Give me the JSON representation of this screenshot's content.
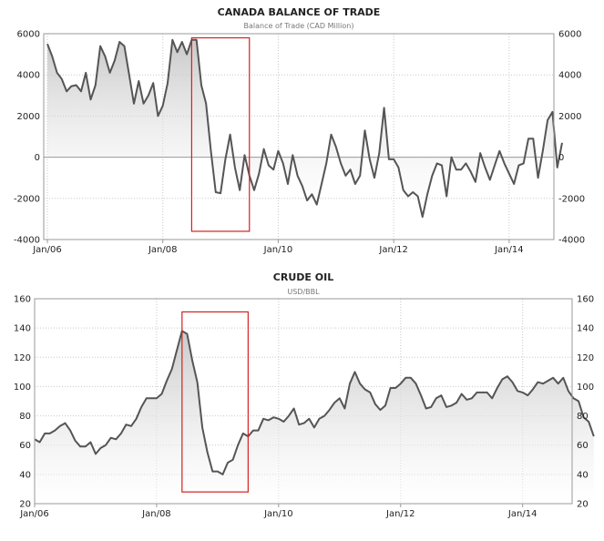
{
  "charts": [
    {
      "title": "CANADA BALANCE OF TRADE",
      "subtitle": "Balance of Trade (CAD Million)"
    },
    {
      "title": "CRUDE OIL",
      "subtitle": "USD/BBL"
    }
  ],
  "chart_data": [
    {
      "type": "area",
      "title": "CANADA BALANCE OF TRADE",
      "subtitle": "Balance of Trade (CAD Million)",
      "xlabel": "",
      "ylabel": "",
      "x_ticks": [
        "Jan/06",
        "Jan/08",
        "Jan/10",
        "Jan/12",
        "Jan/14"
      ],
      "y_ticks": [
        -4000,
        -2000,
        0,
        2000,
        4000,
        6000
      ],
      "ylim": [
        -4000,
        6000
      ],
      "grid": true,
      "x_start": "Jan/06",
      "x_step": "1 month",
      "series": [
        {
          "values": [
            5500,
            4900,
            4100,
            3800,
            3200,
            3450,
            3500,
            3200,
            4100,
            2800,
            3500,
            5400,
            4900,
            4100,
            4700,
            5600,
            5400,
            4000,
            2600,
            3700,
            2600,
            3000,
            3600,
            2000,
            2500,
            3600,
            5700,
            5100,
            5600,
            5000,
            5700,
            5700,
            3500,
            2600,
            300,
            -1700,
            -1750,
            -100,
            1100,
            -500,
            -1600,
            100,
            -900,
            -1600,
            -800,
            400,
            -400,
            -600,
            300,
            -300,
            -1300,
            100,
            -900,
            -1400,
            -2100,
            -1800,
            -2300,
            -1300,
            -300,
            1100,
            500,
            -300,
            -900,
            -600,
            -1300,
            -900,
            1300,
            -100,
            -1000,
            200,
            2400,
            -100,
            -100,
            -500,
            -1600,
            -1900,
            -1700,
            -1900,
            -2900,
            -1800,
            -900,
            -300,
            -400,
            -1900,
            0,
            -600,
            -600,
            -300,
            -700,
            -1200,
            200,
            -500,
            -1100,
            -400,
            300,
            -300,
            -800,
            -1300,
            -400,
            -300,
            900,
            900,
            -1000,
            300,
            1800,
            2200,
            -500,
            700
          ]
        }
      ],
      "highlight": {
        "from": "Jul/08",
        "to": "Jul/09",
        "y_range": [
          -3600,
          5800
        ]
      }
    },
    {
      "type": "area",
      "title": "CRUDE OIL",
      "subtitle": "USD/BBL",
      "xlabel": "",
      "ylabel": "",
      "x_ticks": [
        "Jan/06",
        "Jan/08",
        "Jan/10",
        "Jan/12",
        "Jan/14"
      ],
      "y_ticks": [
        20,
        40,
        60,
        80,
        100,
        120,
        140,
        160
      ],
      "ylim": [
        20,
        160
      ],
      "grid": true,
      "x_start": "Jan/06",
      "x_step": "1 month",
      "series": [
        {
          "values": [
            64,
            62,
            68,
            68,
            70,
            73,
            75,
            70,
            63,
            59,
            59,
            62,
            54,
            58,
            60,
            65,
            64,
            68,
            74,
            73,
            78,
            86,
            92,
            92,
            92,
            95,
            104,
            112,
            125,
            138,
            136,
            118,
            103,
            72,
            55,
            42,
            42,
            40,
            48,
            50,
            60,
            68,
            66,
            70,
            70,
            78,
            77,
            79,
            78,
            76,
            80,
            85,
            74,
            75,
            78,
            72,
            78,
            80,
            84,
            89,
            92,
            85,
            102,
            110,
            102,
            98,
            96,
            88,
            84,
            87,
            99,
            99,
            102,
            106,
            106,
            102,
            94,
            85,
            86,
            92,
            94,
            86,
            87,
            89,
            95,
            91,
            92,
            96,
            96,
            96,
            92,
            99,
            105,
            107,
            103,
            97,
            96,
            94,
            98,
            103,
            102,
            104,
            106,
            102,
            106,
            97,
            92,
            90,
            79,
            76,
            66
          ]
        }
      ],
      "highlight": {
        "from": "Jun/08",
        "to": "Jul/09",
        "y_range": [
          28,
          151
        ]
      }
    }
  ]
}
